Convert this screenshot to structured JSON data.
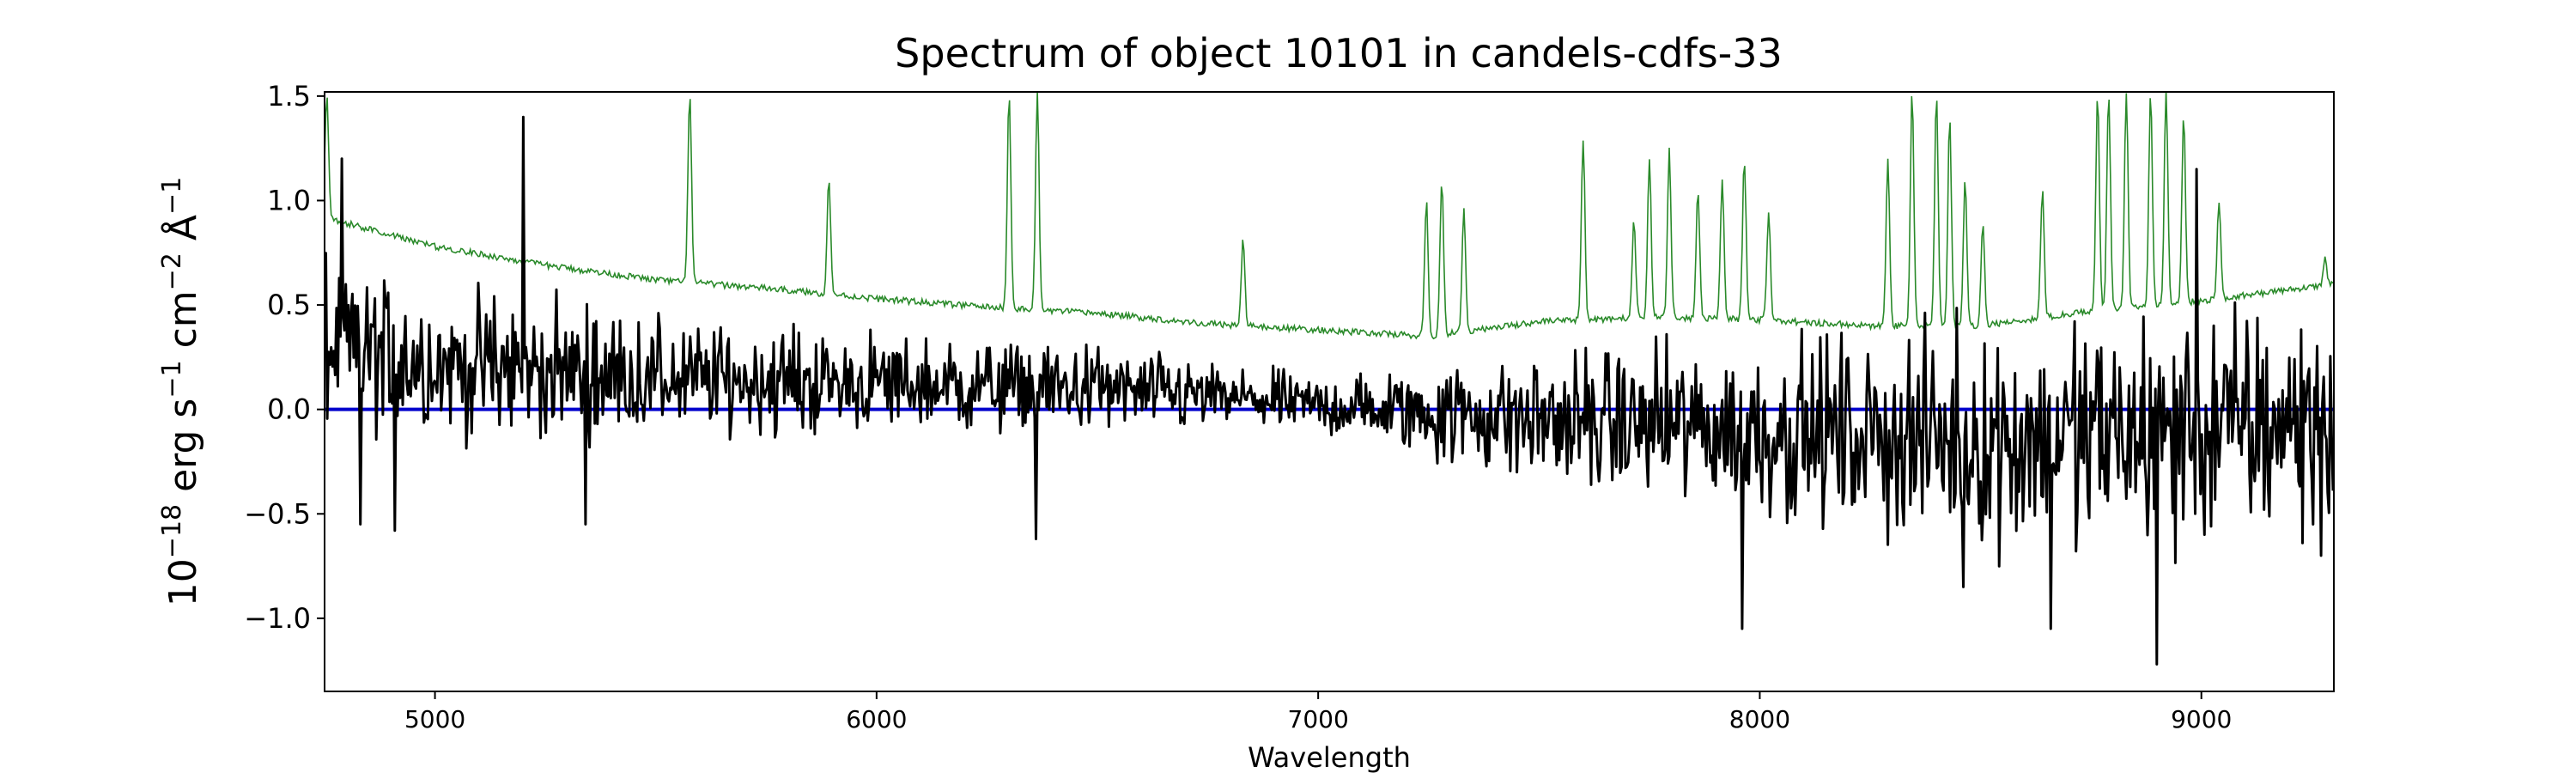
{
  "chart_data": {
    "type": "line",
    "title": "Spectrum of object 10101 in candels-cdfs-33",
    "xlabel": "Wavelength",
    "ylabel_parts": {
      "base": "10",
      "exp_base": "−18",
      "t1": " erg s",
      "exp1": "−1",
      "t2": " cm",
      "exp2": "−2",
      "t3": " Å",
      "exp3": "−1"
    },
    "xlim": [
      4750,
      9300
    ],
    "ylim": [
      -1.35,
      1.52
    ],
    "x_ticks": [
      5000,
      6000,
      7000,
      8000,
      9000
    ],
    "x_tick_labels": [
      "5000",
      "6000",
      "7000",
      "8000",
      "9000"
    ],
    "y_ticks": [
      -1.0,
      -0.5,
      0.0,
      0.5,
      1.0,
      1.5
    ],
    "y_tick_labels": [
      "−1.0",
      "−0.5",
      "0.0",
      "0.5",
      "1.0",
      "1.5"
    ],
    "grid": false,
    "colors": {
      "flux": "#000000",
      "sky": "#2a8a2a",
      "zero_line": "#0000cc"
    },
    "series": [
      {
        "key": "sky",
        "x_range": [
          4750,
          9300
        ],
        "continuum": [
          [
            4750,
            0.92
          ],
          [
            5000,
            0.78
          ],
          [
            5250,
            0.69
          ],
          [
            5500,
            0.62
          ],
          [
            5750,
            0.58
          ],
          [
            6000,
            0.53
          ],
          [
            6250,
            0.49
          ],
          [
            6500,
            0.46
          ],
          [
            6750,
            0.41
          ],
          [
            7000,
            0.38
          ],
          [
            7250,
            0.35
          ],
          [
            7500,
            0.42
          ],
          [
            7750,
            0.44
          ],
          [
            8000,
            0.43
          ],
          [
            8250,
            0.4
          ],
          [
            8500,
            0.4
          ],
          [
            8750,
            0.47
          ],
          [
            9000,
            0.52
          ],
          [
            9300,
            0.6
          ]
        ],
        "emission_lines": [
          [
            4755,
            1.5
          ],
          [
            5577,
            1.52
          ],
          [
            5892,
            1.1
          ],
          [
            6300,
            1.52
          ],
          [
            6364,
            1.52
          ],
          [
            6830,
            0.82
          ],
          [
            7245,
            1.0
          ],
          [
            7280,
            1.1
          ],
          [
            7330,
            0.95
          ],
          [
            7600,
            1.3
          ],
          [
            7715,
            0.9
          ],
          [
            7750,
            1.2
          ],
          [
            7795,
            1.25
          ],
          [
            7860,
            1.05
          ],
          [
            7915,
            1.1
          ],
          [
            7965,
            1.2
          ],
          [
            8020,
            0.95
          ],
          [
            8290,
            1.2
          ],
          [
            8345,
            1.52
          ],
          [
            8400,
            1.52
          ],
          [
            8430,
            1.4
          ],
          [
            8465,
            1.1
          ],
          [
            8505,
            0.9
          ],
          [
            8640,
            1.05
          ],
          [
            8765,
            1.52
          ],
          [
            8790,
            1.52
          ],
          [
            8830,
            1.52
          ],
          [
            8885,
            1.52
          ],
          [
            8920,
            1.52
          ],
          [
            8960,
            1.4
          ],
          [
            9040,
            1.0
          ],
          [
            9280,
            0.72
          ]
        ]
      },
      {
        "key": "flux",
        "x_range": [
          4750,
          9300
        ],
        "baseline": [
          [
            4750,
            0.3
          ],
          [
            5000,
            0.22
          ],
          [
            5500,
            0.15
          ],
          [
            6000,
            0.12
          ],
          [
            6500,
            0.1
          ],
          [
            7000,
            0.02
          ],
          [
            7500,
            -0.05
          ],
          [
            8000,
            -0.1
          ],
          [
            8500,
            -0.15
          ],
          [
            9000,
            -0.1
          ],
          [
            9300,
            -0.05
          ]
        ],
        "noise_amplitude": [
          [
            4750,
            0.45
          ],
          [
            5500,
            0.3
          ],
          [
            6500,
            0.22
          ],
          [
            7000,
            0.15
          ],
          [
            7500,
            0.35
          ],
          [
            8000,
            0.45
          ],
          [
            8500,
            0.55
          ],
          [
            9000,
            0.65
          ],
          [
            9300,
            0.55
          ]
        ],
        "features": [
          [
            4790,
            1.2
          ],
          [
            4830,
            -0.55
          ],
          [
            4910,
            -0.58
          ],
          [
            5200,
            1.4
          ],
          [
            5340,
            -0.55
          ],
          [
            6360,
            -0.62
          ],
          [
            7960,
            -1.05
          ],
          [
            8460,
            -0.85
          ],
          [
            8660,
            -1.05
          ],
          [
            8900,
            -1.22
          ],
          [
            8990,
            1.15
          ],
          [
            9270,
            -0.7
          ]
        ]
      },
      {
        "key": "zero_line",
        "x": [
          4750,
          9300
        ],
        "y": [
          0.0,
          0.0
        ]
      }
    ]
  }
}
